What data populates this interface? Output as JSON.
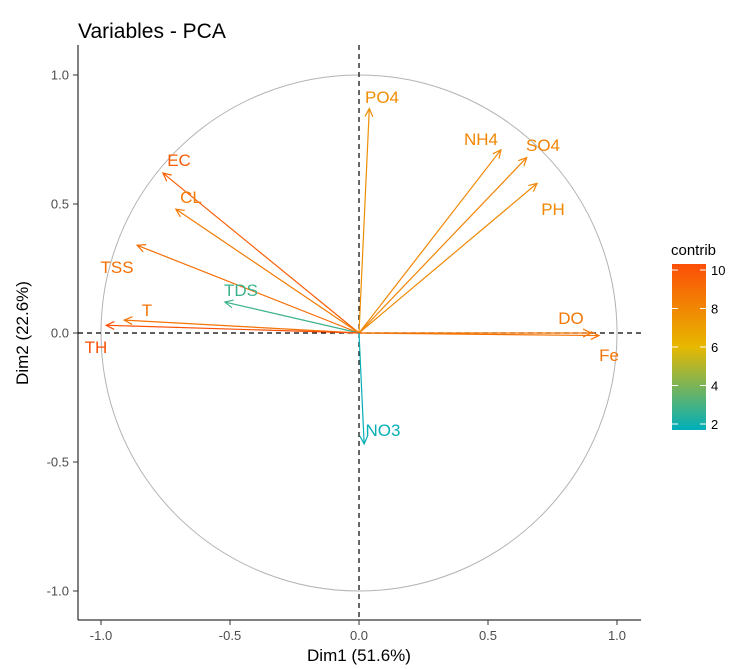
{
  "chart_data": {
    "type": "scatter",
    "subtype": "pca-variable-correlation-circle",
    "title": "Variables - PCA",
    "xlabel": "Dim1 (51.6%)",
    "ylabel": "Dim2 (22.6%)",
    "xlim": [
      -1.0,
      1.0
    ],
    "ylim": [
      -1.0,
      1.0
    ],
    "x_ticks": [
      {
        "value": -1.0,
        "label": "-1.0"
      },
      {
        "value": -0.5,
        "label": "-0.5"
      },
      {
        "value": 0.0,
        "label": "0.0"
      },
      {
        "value": 0.5,
        "label": "0.5"
      },
      {
        "value": 1.0,
        "label": "1.0"
      }
    ],
    "y_ticks": [
      {
        "value": -1.0,
        "label": "-1.0"
      },
      {
        "value": -0.5,
        "label": "-0.5"
      },
      {
        "value": 0.0,
        "label": "0.0"
      },
      {
        "value": 0.5,
        "label": "0.5"
      },
      {
        "value": 1.0,
        "label": "1.0"
      }
    ],
    "grid": false,
    "reference_lines": {
      "x": 0,
      "y": 0,
      "style": "dashed"
    },
    "unit_circle": true,
    "variables": [
      {
        "name": "PO4",
        "x": 0.04,
        "y": 0.87,
        "contrib": 7.6
      },
      {
        "name": "NH4",
        "x": 0.55,
        "y": 0.71,
        "contrib": 7.9
      },
      {
        "name": "SO4",
        "x": 0.65,
        "y": 0.68,
        "contrib": 8.0
      },
      {
        "name": "PH",
        "x": 0.69,
        "y": 0.58,
        "contrib": 7.8
      },
      {
        "name": "EC",
        "x": -0.76,
        "y": 0.62,
        "contrib": 9.4
      },
      {
        "name": "CL",
        "x": -0.71,
        "y": 0.48,
        "contrib": 8.3
      },
      {
        "name": "TSS",
        "x": -0.86,
        "y": 0.34,
        "contrib": 8.8
      },
      {
        "name": "TDS",
        "x": -0.52,
        "y": 0.12,
        "contrib": 3.0
      },
      {
        "name": "T",
        "x": -0.91,
        "y": 0.05,
        "contrib": 8.6
      },
      {
        "name": "TH",
        "x": -0.98,
        "y": 0.03,
        "contrib": 9.9
      },
      {
        "name": "DO",
        "x": 0.9,
        "y": 0.0,
        "contrib": 8.4
      },
      {
        "name": "Fe",
        "x": 0.93,
        "y": -0.01,
        "contrib": 8.6
      },
      {
        "name": "NO3",
        "x": 0.02,
        "y": -0.43,
        "contrib": 2.1
      }
    ],
    "legend": {
      "title": "contrib",
      "position": "right",
      "min": 2,
      "max": 10,
      "ticks": [
        {
          "value": 10,
          "label": "10"
        },
        {
          "value": 8,
          "label": "8"
        },
        {
          "value": 6,
          "label": "6"
        },
        {
          "value": 4,
          "label": "4"
        },
        {
          "value": 2,
          "label": "2"
        }
      ],
      "gradient": [
        "#00AFBB",
        "#E7B800",
        "#FC4E07"
      ]
    }
  }
}
